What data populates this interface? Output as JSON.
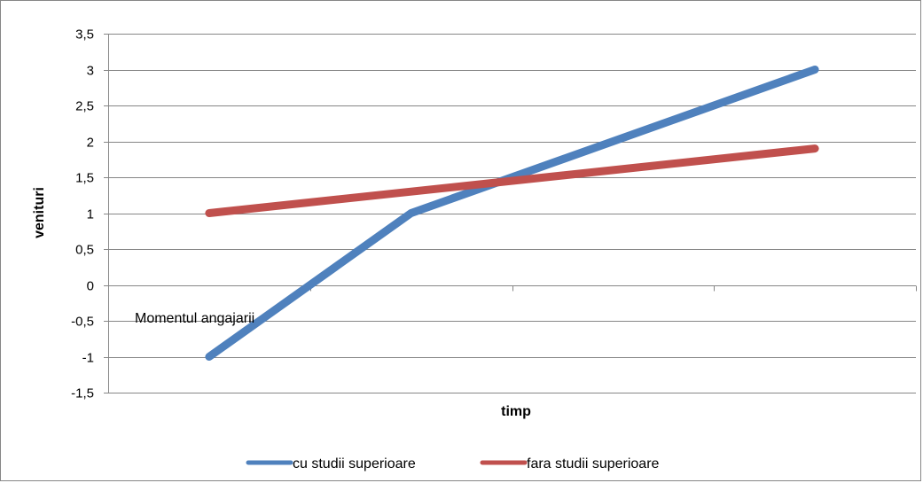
{
  "chart_data": {
    "type": "line",
    "title": "",
    "xlabel": "timp",
    "ylabel": "venituri",
    "ylim": [
      -1.5,
      3.5
    ],
    "ytick_step": 0.5,
    "yticks": [
      "3,5",
      "3",
      "2,5",
      "2",
      "1,5",
      "1",
      "0,5",
      "0",
      "-0,5",
      "-1",
      "-1,5"
    ],
    "x_categories": 4,
    "grid": true,
    "legend_position": "bottom",
    "annotation": "Momentul angajarii",
    "series": [
      {
        "name": "cu studii superioare",
        "color": "#4f81bd",
        "points": [
          [
            0.5,
            -1
          ],
          [
            1.5,
            1
          ],
          [
            3.5,
            3
          ]
        ]
      },
      {
        "name": "fara studii superioare",
        "color": "#c0504d",
        "points": [
          [
            0.5,
            1
          ],
          [
            3.5,
            1.9
          ]
        ]
      }
    ]
  }
}
